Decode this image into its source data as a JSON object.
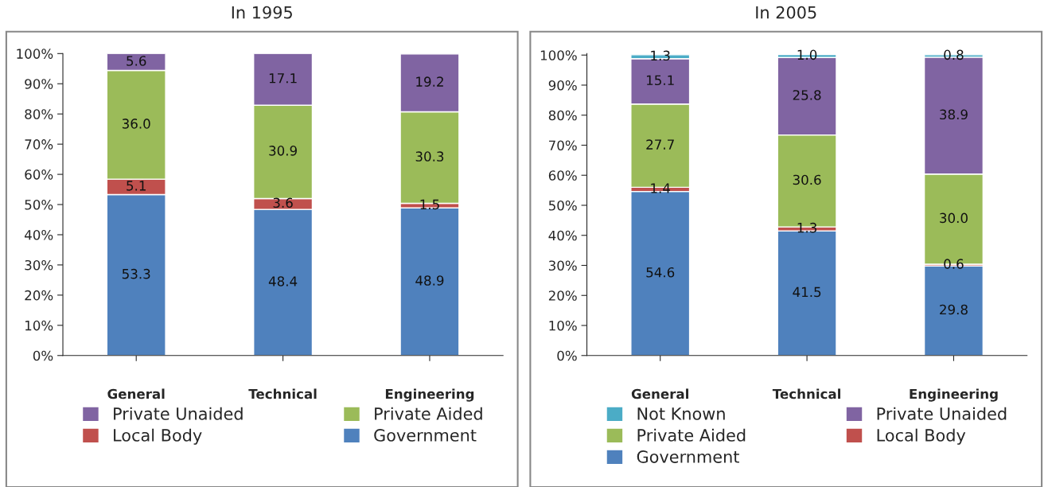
{
  "chart_data": [
    {
      "type": "bar",
      "stacked": true,
      "title": "In 1995",
      "categories": [
        "General",
        "Technical",
        "Engineering"
      ],
      "ylim": [
        0,
        100
      ],
      "yticks": [
        {
          "value": 0,
          "label": "0%"
        },
        {
          "value": 10,
          "label": "10%"
        },
        {
          "value": 20,
          "label": "20%"
        },
        {
          "value": 30,
          "label": "30%"
        },
        {
          "value": 40,
          "label": "40%"
        },
        {
          "value": 50,
          "label": "50%"
        },
        {
          "value": 60,
          "label": "60%"
        },
        {
          "value": 70,
          "label": "70%"
        },
        {
          "value": 80,
          "label": "80%"
        },
        {
          "value": 90,
          "label": "90%"
        },
        {
          "value": 100,
          "label": "100%"
        }
      ],
      "grid": false,
      "legend": "bottom",
      "series": [
        {
          "name": "Government",
          "color": "#4f81bd",
          "values": [
            53.3,
            48.4,
            48.9
          ],
          "value_labels": [
            "53.3",
            "48.4",
            "48.9"
          ]
        },
        {
          "name": "Local Body",
          "color": "#c0504d",
          "values": [
            5.1,
            3.6,
            1.5
          ],
          "value_labels": [
            "5.1",
            "3.6",
            "1.5"
          ]
        },
        {
          "name": "Private Aided",
          "color": "#9bbb59",
          "values": [
            36.0,
            30.9,
            30.3
          ],
          "value_labels": [
            "36.0",
            "30.9",
            "30.3"
          ]
        },
        {
          "name": "Private Unaided",
          "color": "#8064a2",
          "values": [
            5.6,
            17.1,
            19.2
          ],
          "value_labels": [
            "5.6",
            "17.1",
            "19.2"
          ]
        }
      ]
    },
    {
      "type": "bar",
      "stacked": true,
      "title": "In 2005",
      "categories": [
        "General",
        "Technical",
        "Engineering"
      ],
      "ylim": [
        0,
        100.5
      ],
      "yticks": [
        {
          "value": 0,
          "label": "0%"
        },
        {
          "value": 10,
          "label": "10%"
        },
        {
          "value": 20,
          "label": "20%"
        },
        {
          "value": 30,
          "label": "30%"
        },
        {
          "value": 40,
          "label": "40%"
        },
        {
          "value": 50,
          "label": "50%"
        },
        {
          "value": 60,
          "label": "60%"
        },
        {
          "value": 70,
          "label": "70%"
        },
        {
          "value": 80,
          "label": "80%"
        },
        {
          "value": 90,
          "label": "90%"
        },
        {
          "value": 100,
          "label": "100%"
        }
      ],
      "grid": false,
      "legend": "bottom",
      "series": [
        {
          "name": "Government",
          "color": "#4f81bd",
          "values": [
            54.6,
            41.5,
            29.8
          ],
          "value_labels": [
            "54.6",
            "41.5",
            "29.8"
          ]
        },
        {
          "name": "Local Body",
          "color": "#c0504d",
          "values": [
            1.4,
            1.3,
            0.6
          ],
          "value_labels": [
            "1.4",
            "1.3",
            "0.6"
          ]
        },
        {
          "name": "Private Aided",
          "color": "#9bbb59",
          "values": [
            27.7,
            30.6,
            30.0
          ],
          "value_labels": [
            "27.7",
            "30.6",
            "30.0"
          ]
        },
        {
          "name": "Private Unaided",
          "color": "#8064a2",
          "values": [
            15.1,
            25.8,
            38.9
          ],
          "value_labels": [
            "15.1",
            "25.8",
            "38.9"
          ]
        },
        {
          "name": "Not Known",
          "color": "#4bacc6",
          "values": [
            1.3,
            1.0,
            0.8
          ],
          "value_labels": [
            "1.3",
            "1.0",
            "0.8"
          ]
        }
      ]
    }
  ]
}
